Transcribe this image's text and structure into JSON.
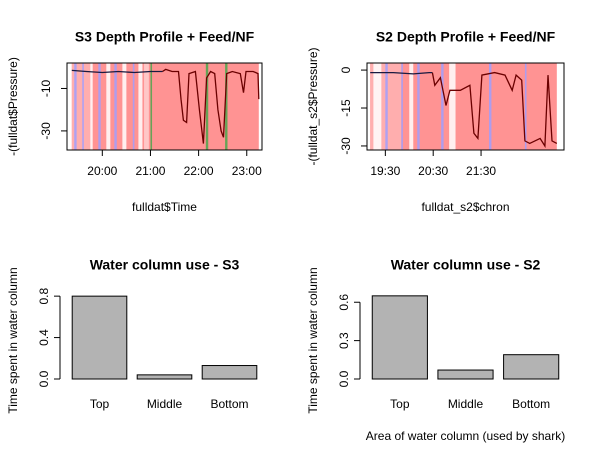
{
  "chart_data": [
    {
      "type": "line",
      "title": "S3 Depth Profile + Feed/NF",
      "xlabel": "fulldat$Time",
      "ylabel": "-(fulldat$Pressure)",
      "xlim": [
        "19:16",
        "23:19"
      ],
      "xticks": [
        "20:00",
        "21:00",
        "22:00",
        "23:00"
      ],
      "ylim": [
        -39,
        2
      ],
      "yticks": [
        -10,
        -30
      ],
      "bands": [
        {
          "start": "19:22",
          "end": "23:15",
          "color": "#ff8080"
        },
        {
          "start": "19:22",
          "end": "19:45",
          "color": "#ffb3b3"
        },
        {
          "start": "19:25",
          "end": "19:28",
          "color": "#9f9fff"
        },
        {
          "start": "19:35",
          "end": "19:37",
          "color": "#9f9fff"
        },
        {
          "start": "19:45",
          "end": "19:48",
          "color": "#ffffff"
        },
        {
          "start": "19:55",
          "end": "19:58",
          "color": "#9f9fff"
        },
        {
          "start": "20:05",
          "end": "20:10",
          "color": "#ffffff"
        },
        {
          "start": "20:15",
          "end": "20:18",
          "color": "#9f9fff"
        },
        {
          "start": "20:25",
          "end": "20:30",
          "color": "#ffffff"
        },
        {
          "start": "20:38",
          "end": "20:40",
          "color": "#9f9fff"
        },
        {
          "start": "20:45",
          "end": "20:50",
          "color": "#ffffff"
        },
        {
          "start": "20:52",
          "end": "20:58",
          "color": "#ffd0d0"
        },
        {
          "start": "21:00",
          "end": "21:02",
          "color": "#4ca64c"
        },
        {
          "start": "22:09",
          "end": "22:12",
          "color": "#4ca64c"
        },
        {
          "start": "22:33",
          "end": "22:36",
          "color": "#4ca64c"
        }
      ],
      "series": [
        {
          "color": "#1a1a40",
          "x": [
            "19:22",
            "19:40",
            "20:00",
            "20:20",
            "20:40",
            "21:00",
            "21:15"
          ],
          "values": [
            -1.5,
            -2,
            -2.5,
            -2,
            -2.5,
            -2,
            -2
          ]
        },
        {
          "color": "#6b0000",
          "x": [
            "21:15",
            "21:19",
            "21:27",
            "21:35",
            "21:38",
            "21:41",
            "21:45",
            "21:48",
            "21:56",
            "22:01",
            "22:06",
            "22:10",
            "22:15",
            "22:20",
            "22:24",
            "22:28",
            "22:31",
            "22:35",
            "22:42",
            "22:52",
            "22:56",
            "22:59",
            "23:08",
            "23:14",
            "23:15"
          ],
          "values": [
            -2,
            -1,
            -2,
            -2,
            -15,
            -25,
            -26,
            -3,
            -2,
            -20,
            -36,
            -5,
            -2,
            -3,
            -20,
            -30,
            -33,
            -3,
            -2,
            -3,
            -12,
            -2,
            -2,
            -3,
            -15
          ]
        }
      ]
    },
    {
      "type": "line",
      "title": "S2 Depth Profile + Feed/NF",
      "xlabel": "fulldat_s2$chron",
      "ylabel": "-(fulldat_s2$Pressure)",
      "xlim": [
        "19:07",
        "23:14"
      ],
      "xticks": [
        "19:30",
        "20:30",
        "21:30"
      ],
      "ylim": [
        -31.6,
        2.8
      ],
      "yticks": [
        0,
        -15,
        -30
      ],
      "bands": [
        {
          "start": "19:11",
          "end": "23:05",
          "color": "#ff8080"
        },
        {
          "start": "19:11",
          "end": "19:50",
          "color": "#ffb3b3"
        },
        {
          "start": "19:15",
          "end": "19:25",
          "color": "#ffffff"
        },
        {
          "start": "19:30",
          "end": "19:33",
          "color": "#9f9fff"
        },
        {
          "start": "19:50",
          "end": "19:52",
          "color": "#9f9fff"
        },
        {
          "start": "20:00",
          "end": "20:05",
          "color": "#ffffff"
        },
        {
          "start": "20:10",
          "end": "20:13",
          "color": "#9f9fff"
        },
        {
          "start": "20:40",
          "end": "20:43",
          "color": "#9f9fff"
        },
        {
          "start": "20:50",
          "end": "20:58",
          "color": "#ffffff"
        },
        {
          "start": "21:40",
          "end": "21:43",
          "color": "#9f9fff"
        },
        {
          "start": "22:25",
          "end": "22:27",
          "color": "#9f9fff"
        }
      ],
      "series": [
        {
          "color": "#1a1a40",
          "x": [
            "19:11",
            "19:40",
            "20:05",
            "20:25",
            "20:29"
          ],
          "values": [
            -1,
            -1,
            -1.5,
            -1,
            -1
          ]
        },
        {
          "color": "#6b0000",
          "x": [
            "20:29",
            "20:32",
            "20:39",
            "20:46",
            "20:51",
            "21:04",
            "21:16",
            "21:21",
            "21:26",
            "21:31",
            "21:47",
            "22:00",
            "22:09",
            "22:14",
            "22:21",
            "22:25",
            "22:31",
            "22:44",
            "22:50",
            "22:54",
            "22:59",
            "23:05"
          ],
          "values": [
            -1,
            -6,
            -3,
            -14,
            -8,
            -8,
            -6,
            -25,
            -27,
            -2,
            -1,
            -2,
            -8,
            -2,
            -4,
            -28,
            -29,
            -27,
            -30,
            -2,
            -28,
            -29
          ]
        }
      ]
    },
    {
      "type": "bar",
      "title": "Water column use - S3",
      "ylabel": "Time spent in water column",
      "categories": [
        "Top",
        "Middle",
        "Bottom"
      ],
      "values": [
        0.8,
        0.04,
        0.13
      ],
      "color": "#b3b3b3",
      "ylim": [
        0,
        0.84
      ],
      "yticks": [
        {
          "value": 0,
          "label": "0.0"
        },
        {
          "value": 0.4,
          "label": "0.4"
        },
        {
          "value": 0.8,
          "label": "0.8"
        }
      ]
    },
    {
      "type": "bar",
      "title": "Water column use - S2",
      "ylabel": "Time spent in water column",
      "xlabel": "Area of water column (used by shark)",
      "categories": [
        "Top",
        "Middle",
        "Bottom"
      ],
      "values": [
        0.65,
        0.07,
        0.19
      ],
      "color": "#b3b3b3",
      "ylim": [
        0,
        0.68
      ],
      "yticks": [
        {
          "value": 0,
          "label": "0.0"
        },
        {
          "value": 0.3,
          "label": "0.3"
        },
        {
          "value": 0.6,
          "label": "0.6"
        }
      ]
    }
  ]
}
